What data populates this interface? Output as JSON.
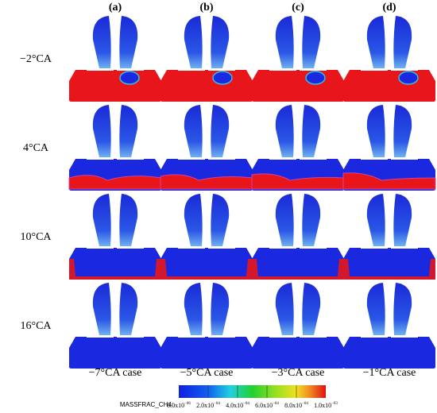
{
  "columns": [
    "(a)",
    "(b)",
    "(c)",
    "(d)"
  ],
  "rows": [
    "−2°CA",
    "4°CA",
    "10°CA",
    "16°CA"
  ],
  "cases": [
    "−7°CA case",
    "−5°CA case",
    "−3°CA case",
    "−1°CA case"
  ],
  "colorbar": {
    "label": "MASSFRAC_CH4:",
    "ticks": [
      {
        "base": "0.0x10",
        "exp": "−06"
      },
      {
        "base": "2.0x10",
        "exp": "−04"
      },
      {
        "base": "4.0x10",
        "exp": "−04"
      },
      {
        "base": "6.0x10",
        "exp": "−04"
      },
      {
        "base": "8.0x10",
        "exp": "−04"
      },
      {
        "base": "1.0x10",
        "exp": "−03"
      }
    ]
  }
}
